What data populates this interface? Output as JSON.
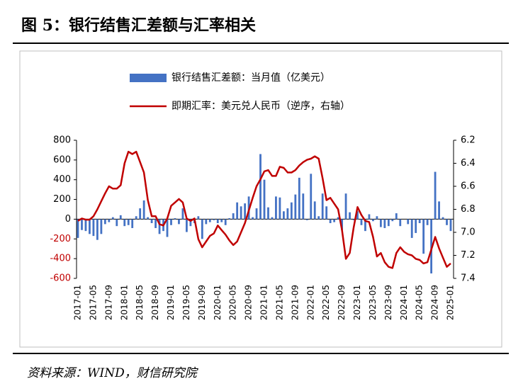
{
  "title": "图 5：银行结售汇差额与汇率相关",
  "source": "资料来源：WIND，财信研究院",
  "chart_data": {
    "type": "bar+line",
    "categories": [
      "2017-01",
      null,
      null,
      null,
      "2017-05",
      null,
      null,
      null,
      "2017-09",
      null,
      null,
      null,
      "2018-01",
      null,
      null,
      null,
      "2018-05",
      null,
      null,
      null,
      "2018-09",
      null,
      null,
      null,
      "2019-01",
      null,
      null,
      null,
      "2019-05",
      null,
      null,
      null,
      "2019-09",
      null,
      null,
      null,
      "2020-01",
      null,
      null,
      null,
      "2020-05",
      null,
      null,
      null,
      "2020-09",
      null,
      null,
      null,
      "2021-01",
      null,
      null,
      null,
      "2021-05",
      null,
      null,
      null,
      "2021-09",
      null,
      null,
      null,
      "2022-01",
      null,
      null,
      null,
      "2022-05",
      null,
      null,
      null,
      "2022-09",
      null,
      null,
      null,
      "2023-01",
      null,
      null,
      null,
      "2023-05",
      null,
      null,
      null,
      "2023-09",
      null,
      null,
      null,
      "2024-01",
      null,
      null,
      null,
      "2024-05",
      null,
      null,
      null,
      "2024-09",
      null,
      null,
      null,
      "2025-01"
    ],
    "series": [
      {
        "name": "银行结售汇差额：当月值（亿美元）",
        "type": "bar",
        "color": "#4472c4",
        "values": [
          -190,
          -110,
          -120,
          -150,
          -170,
          -210,
          -150,
          -50,
          -30,
          20,
          -70,
          40,
          -70,
          -60,
          -90,
          30,
          110,
          190,
          20,
          -40,
          -90,
          -150,
          -120,
          -180,
          -60,
          10,
          -50,
          110,
          -130,
          -70,
          -40,
          30,
          -200,
          -50,
          -30,
          -10,
          -40,
          -30,
          -60,
          10,
          60,
          170,
          130,
          160,
          230,
          20,
          110,
          660,
          400,
          120,
          20,
          230,
          220,
          80,
          110,
          170,
          250,
          420,
          260,
          -10,
          460,
          180,
          30,
          260,
          130,
          -40,
          -30,
          20,
          -110,
          260,
          70,
          -10,
          80,
          -60,
          -120,
          50,
          -20,
          30,
          -80,
          -90,
          -70,
          -20,
          60,
          -70,
          0,
          -50,
          -190,
          -140,
          -40,
          -350,
          -60,
          -550,
          480,
          180,
          20,
          -60,
          -120
        ]
      },
      {
        "name": "即期汇率：美元兑人民币（逆序，右轴）",
        "type": "line",
        "axis": "y2",
        "color": "#c00000",
        "values": [
          6.9,
          6.88,
          6.89,
          6.89,
          6.86,
          6.8,
          6.73,
          6.66,
          6.6,
          6.62,
          6.62,
          6.59,
          6.4,
          6.3,
          6.32,
          6.3,
          6.39,
          6.48,
          6.72,
          6.86,
          6.86,
          6.93,
          6.94,
          6.88,
          6.77,
          6.74,
          6.71,
          6.74,
          6.88,
          6.9,
          6.88,
          7.06,
          7.13,
          7.08,
          7.03,
          7.01,
          6.94,
          6.98,
          7.02,
          7.07,
          7.11,
          7.08,
          7.0,
          6.92,
          6.81,
          6.7,
          6.6,
          6.54,
          6.47,
          6.46,
          6.51,
          6.51,
          6.43,
          6.44,
          6.48,
          6.48,
          6.46,
          6.42,
          6.39,
          6.37,
          6.36,
          6.34,
          6.36,
          6.53,
          6.72,
          6.7,
          6.75,
          6.8,
          6.98,
          7.23,
          7.18,
          6.96,
          6.78,
          6.85,
          6.9,
          6.91,
          7.04,
          7.21,
          7.18,
          7.26,
          7.3,
          7.31,
          7.18,
          7.13,
          7.17,
          7.19,
          7.2,
          7.23,
          7.24,
          7.27,
          7.26,
          7.15,
          7.04,
          7.14,
          7.22,
          7.3,
          7.27
        ]
      }
    ],
    "ylim": [
      -600,
      800
    ],
    "yticks": [
      -600,
      -400,
      -200,
      0,
      200,
      400,
      600,
      800
    ],
    "y2lim": [
      7.4,
      6.2
    ],
    "y2ticks": [
      7.4,
      7.2,
      {
        "value": 7,
        "label": "7.0"
      },
      6.8,
      6.6,
      6.4,
      6.2
    ],
    "legend": "top",
    "grid": false
  }
}
